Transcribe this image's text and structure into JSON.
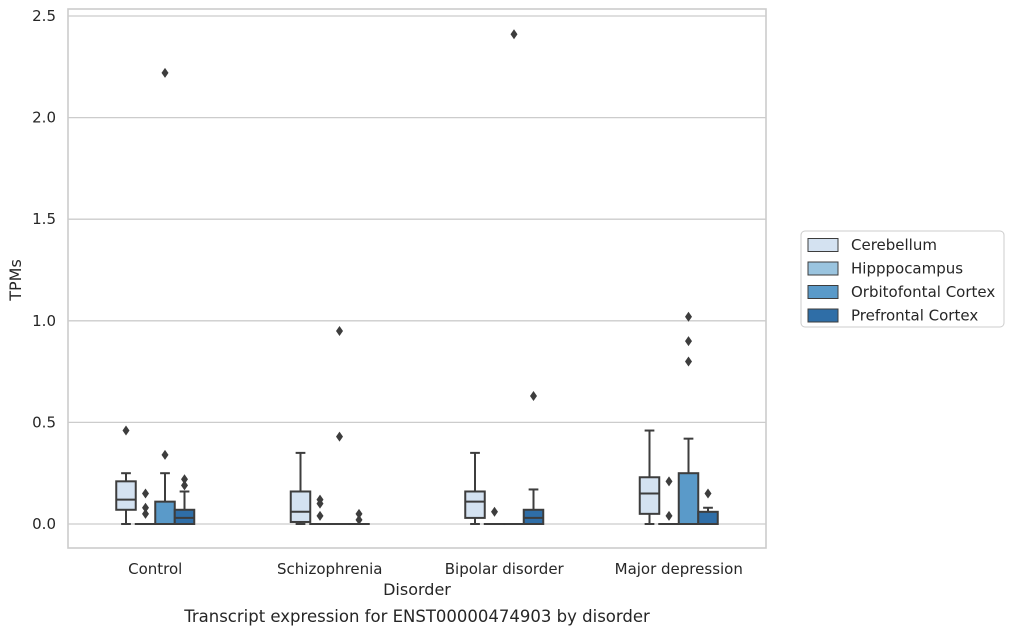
{
  "chart_data": {
    "type": "box",
    "caption": "Transcript expression for ENST00000474903 by disorder",
    "xlabel": "Disorder",
    "ylabel": "TPMs",
    "ylim": [
      -0.12,
      2.54
    ],
    "yticks": [
      "0.0",
      "0.5",
      "1.0",
      "1.5",
      "2.0",
      "2.5"
    ],
    "grid": "horizontal",
    "legend_position": "right",
    "categories": [
      "Control",
      "Schizophrenia",
      "Bipolar disorder",
      "Major depression"
    ],
    "series": [
      {
        "name": "Cerebellum",
        "color": "#d4e2f1",
        "boxes": [
          {
            "whislo": 0.0,
            "q1": 0.07,
            "med": 0.12,
            "q3": 0.21,
            "whishi": 0.25,
            "fliers": [
              0.46
            ]
          },
          {
            "whislo": 0.0,
            "q1": 0.01,
            "med": 0.06,
            "q3": 0.16,
            "whishi": 0.35,
            "fliers": []
          },
          {
            "whislo": 0.0,
            "q1": 0.03,
            "med": 0.11,
            "q3": 0.16,
            "whishi": 0.35,
            "fliers": []
          },
          {
            "whislo": 0.0,
            "q1": 0.05,
            "med": 0.15,
            "q3": 0.23,
            "whishi": 0.46,
            "fliers": []
          }
        ]
      },
      {
        "name": "Hipppocampus",
        "color": "#9ac4df",
        "boxes": [
          {
            "whislo": 0.0,
            "q1": 0.0,
            "med": 0.0,
            "q3": 0.0,
            "whishi": 0.0,
            "fliers": [
              0.05,
              0.08,
              0.15
            ]
          },
          {
            "whislo": 0.0,
            "q1": 0.0,
            "med": 0.0,
            "q3": 0.0,
            "whishi": 0.0,
            "fliers": [
              0.04,
              0.1,
              0.12
            ]
          },
          {
            "whislo": 0.0,
            "q1": 0.0,
            "med": 0.0,
            "q3": 0.0,
            "whishi": 0.0,
            "fliers": [
              0.06
            ]
          },
          {
            "whislo": 0.0,
            "q1": 0.0,
            "med": 0.0,
            "q3": 0.0,
            "whishi": 0.0,
            "fliers": [
              0.04,
              0.21
            ]
          }
        ]
      },
      {
        "name": "Orbitofontal Cortex",
        "color": "#5a9ac9",
        "boxes": [
          {
            "whislo": 0.0,
            "q1": 0.0,
            "med": 0.0,
            "q3": 0.11,
            "whishi": 0.25,
            "fliers": [
              0.34,
              2.22
            ]
          },
          {
            "whislo": 0.0,
            "q1": 0.0,
            "med": 0.0,
            "q3": 0.0,
            "whishi": 0.0,
            "fliers": [
              0.43,
              0.95
            ]
          },
          {
            "whislo": 0.0,
            "q1": 0.0,
            "med": 0.0,
            "q3": 0.0,
            "whishi": 0.0,
            "fliers": [
              2.41
            ]
          },
          {
            "whislo": 0.0,
            "q1": 0.0,
            "med": 0.0,
            "q3": 0.25,
            "whishi": 0.42,
            "fliers": [
              0.8,
              0.9,
              1.02
            ]
          }
        ]
      },
      {
        "name": "Prefrontal Cortex",
        "color": "#2f6ea7",
        "boxes": [
          {
            "whislo": 0.0,
            "q1": 0.0,
            "med": 0.03,
            "q3": 0.07,
            "whishi": 0.16,
            "fliers": [
              0.19,
              0.22
            ]
          },
          {
            "whislo": 0.0,
            "q1": 0.0,
            "med": 0.0,
            "q3": 0.0,
            "whishi": 0.0,
            "fliers": [
              0.02,
              0.05
            ]
          },
          {
            "whislo": 0.0,
            "q1": 0.0,
            "med": 0.03,
            "q3": 0.07,
            "whishi": 0.17,
            "fliers": [
              0.63
            ]
          },
          {
            "whislo": 0.0,
            "q1": 0.0,
            "med": 0.0,
            "q3": 0.06,
            "whishi": 0.08,
            "fliers": [
              0.15
            ]
          }
        ]
      }
    ]
  }
}
